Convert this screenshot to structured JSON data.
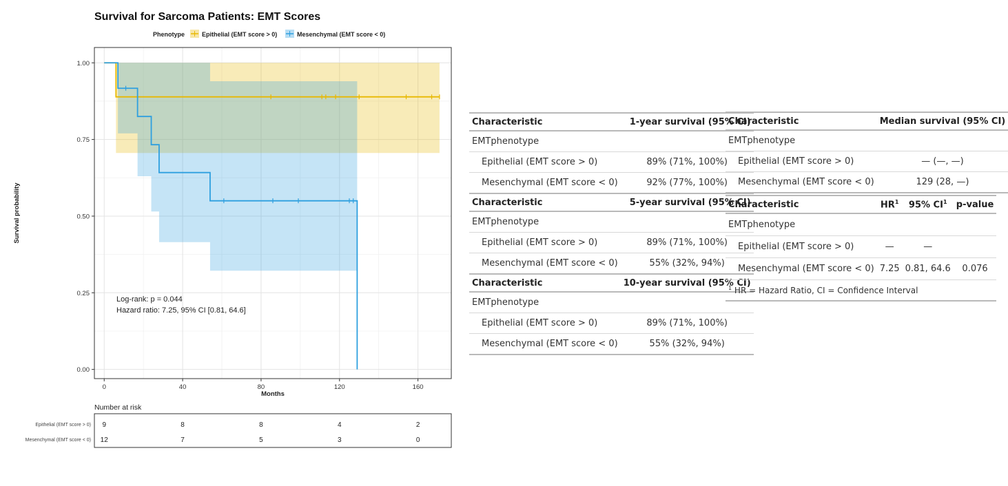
{
  "chart_data": {
    "type": "line",
    "title": "Survival for Sarcoma Patients: EMT Scores",
    "legend_title": "Phenotype",
    "legend_position": "top",
    "xlabel": "Months",
    "ylabel": "Survival probability",
    "xlim": [
      -5,
      177
    ],
    "ylim": [
      -0.03,
      1.05
    ],
    "x_ticks": [
      0,
      40,
      80,
      120,
      160
    ],
    "y_ticks": [
      0.0,
      0.25,
      0.5,
      0.75,
      1.0
    ],
    "y_tick_labels": [
      "0.00",
      "0.25",
      "0.50",
      "0.75",
      "1.00"
    ],
    "grid": true,
    "series": [
      {
        "name": "Epithelial (EMT score > 0)",
        "color": "#E7B800",
        "steps": [
          [
            0,
            1.0
          ],
          [
            6,
            0.889
          ],
          [
            171,
            0.889
          ]
        ],
        "ci_steps": [
          [
            0,
            1.0,
            1.0
          ],
          [
            6,
            0.706,
            1.0
          ],
          [
            171,
            0.706,
            1.0
          ]
        ],
        "censor_x": [
          85,
          111,
          113,
          118,
          130,
          154,
          167,
          171
        ]
      },
      {
        "name": "Mesenchymal (EMT score < 0)",
        "color": "#2E9FDF",
        "steps": [
          [
            0,
            1.0
          ],
          [
            7,
            0.917
          ],
          [
            17,
            0.825
          ],
          [
            24,
            0.733
          ],
          [
            28,
            0.642
          ],
          [
            54,
            0.55
          ],
          [
            129,
            0.55
          ],
          [
            129,
            0.0
          ]
        ],
        "ci_steps": [
          [
            0,
            1.0,
            1.0
          ],
          [
            7,
            0.77,
            1.0
          ],
          [
            17,
            0.63,
            1.0
          ],
          [
            24,
            0.515,
            1.0
          ],
          [
            28,
            0.415,
            1.0
          ],
          [
            54,
            0.322,
            0.94
          ],
          [
            129,
            0.322,
            0.94
          ]
        ],
        "censor_x": [
          11,
          61,
          86,
          99,
          125,
          127
        ]
      }
    ],
    "annotations": [
      "Log-rank: p = 0.044",
      "Hazard ratio: 7.25, 95% CI [0.81, 64.6]"
    ],
    "risk_table": {
      "title": "Number at risk",
      "times": [
        0,
        40,
        80,
        120,
        160
      ],
      "rows": [
        {
          "label": "Epithelial (EMT score > 0)",
          "counts": [
            9,
            8,
            8,
            4,
            2
          ]
        },
        {
          "label": "Mesenchymal (EMT score < 0)",
          "counts": [
            12,
            7,
            5,
            3,
            0
          ]
        }
      ]
    }
  },
  "survival_table": {
    "blocks": [
      {
        "header_left": "Characteristic",
        "header_right": "1-year survival (95% CI)",
        "group": "EMTphenotype",
        "rows": [
          {
            "label": "Epithelial (EMT score > 0)",
            "value": "89% (71%, 100%)"
          },
          {
            "label": "Mesenchymal (EMT score < 0)",
            "value": "92% (77%, 100%)"
          }
        ]
      },
      {
        "header_left": "Characteristic",
        "header_right": "5-year survival (95% CI)",
        "group": "EMTphenotype",
        "rows": [
          {
            "label": "Epithelial (EMT score > 0)",
            "value": "89% (71%, 100%)"
          },
          {
            "label": "Mesenchymal (EMT score < 0)",
            "value": "55% (32%, 94%)"
          }
        ]
      },
      {
        "header_left": "Characteristic",
        "header_right": "10-year survival (95% CI)",
        "group": "EMTphenotype",
        "rows": [
          {
            "label": "Epithelial (EMT score > 0)",
            "value": "89% (71%, 100%)"
          },
          {
            "label": "Mesenchymal (EMT score < 0)",
            "value": "55% (32%, 94%)"
          }
        ]
      }
    ]
  },
  "median_table": {
    "header_left": "Characteristic",
    "header_right": "Median survival (95% CI)",
    "group": "EMTphenotype",
    "rows": [
      {
        "label": "Epithelial (EMT score > 0)",
        "value": "— (—, —)"
      },
      {
        "label": "Mesenchymal (EMT score < 0)",
        "value": "129 (28, —)"
      }
    ]
  },
  "hr_table": {
    "header_left": "Characteristic",
    "header_hr": "HR",
    "header_ci": "95% CI",
    "header_p": "p-value",
    "footnote_mark": "1",
    "group": "EMTphenotype",
    "rows": [
      {
        "label": "Epithelial (EMT score > 0)",
        "hr": "—",
        "ci": "—",
        "p": ""
      },
      {
        "label": "Mesenchymal (EMT score < 0)",
        "hr": "7.25",
        "ci": "0.81, 64.6",
        "p": "0.076"
      }
    ],
    "footnote": "HR = Hazard Ratio, CI = Confidence Interval"
  }
}
